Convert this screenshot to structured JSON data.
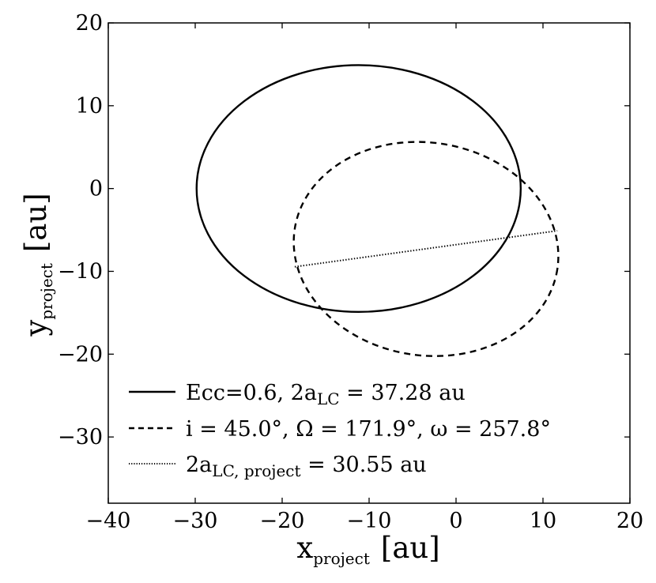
{
  "chart_data": {
    "type": "line",
    "xlim": [
      -40,
      20
    ],
    "ylim": [
      -38,
      20
    ],
    "x_ticks": [
      -40,
      -30,
      -20,
      -10,
      0,
      10,
      20
    ],
    "y_ticks": [
      -30,
      -20,
      -10,
      0,
      10,
      20
    ],
    "x_tick_labels": [
      "−40",
      "−30",
      "−20",
      "−10",
      "0",
      "10",
      "20"
    ],
    "y_tick_labels": [
      "−30",
      "−20",
      "−10",
      "0",
      "10",
      "20"
    ],
    "xlabel": {
      "main": "x",
      "sub": "project",
      "unit": "[au]"
    },
    "ylabel": {
      "main": "y",
      "sub": "project",
      "unit": "[au]"
    },
    "grid": false,
    "legend_position": "lower-left",
    "series": [
      {
        "name": "Ecc=0.6, 2a_LC = 37.28 au",
        "style": "solid",
        "shape": "ellipse",
        "center": [
          -11.2,
          0
        ],
        "semi_axes": [
          18.64,
          14.9
        ],
        "rotation_deg": 0
      },
      {
        "name": "i = 45.0°, Ω = 171.9°, ω = 257.8°",
        "style": "dashed",
        "shape": "ellipse",
        "center": [
          -3.45,
          -7.3
        ],
        "semi_axes": [
          15.28,
          12.85
        ],
        "rotation_deg": 8.7
      },
      {
        "name": "2a_LC,project = 30.55 au",
        "style": "dotted",
        "shape": "line",
        "x": [
          -18.55,
          11.65
        ],
        "y": [
          -9.45,
          -5.1
        ]
      }
    ],
    "legend": [
      {
        "style": "solid",
        "parts": [
          "Ecc=0.6, 2a",
          "LC",
          " = 37.28 au"
        ]
      },
      {
        "style": "dashed",
        "text": "i = 45.0°,  Ω = 171.9°,  ω = 257.8°"
      },
      {
        "style": "dotted",
        "parts": [
          "2a",
          "LC, project",
          " = 30.55 au"
        ]
      }
    ]
  }
}
